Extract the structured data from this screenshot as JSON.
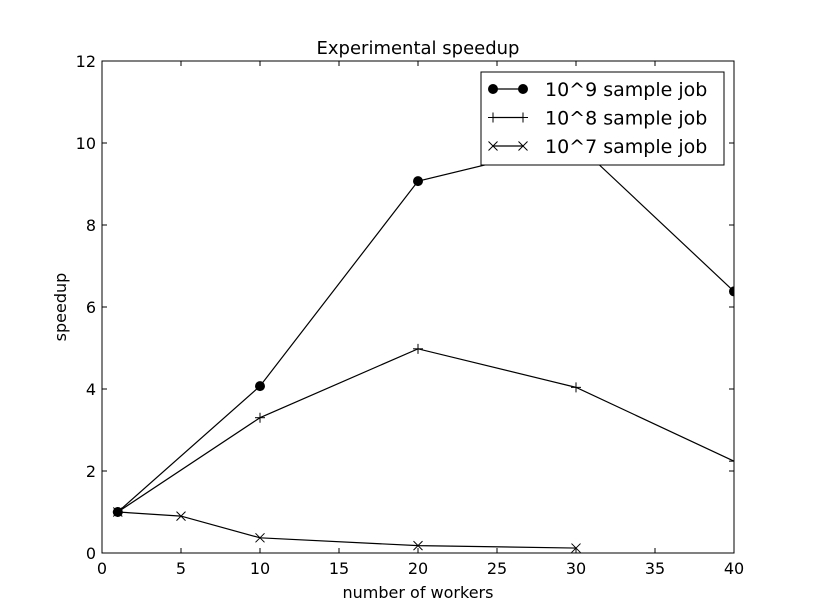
{
  "chart_data": {
    "type": "line",
    "title": "Experimental speedup",
    "xlabel": "number of workers",
    "ylabel": "speedup",
    "xlim": [
      0,
      40
    ],
    "ylim": [
      0,
      12
    ],
    "xticks": [
      0,
      5,
      10,
      15,
      20,
      25,
      30,
      35,
      40
    ],
    "yticks": [
      0,
      2,
      4,
      6,
      8,
      10,
      12
    ],
    "grid": false,
    "legend_position": "top-right",
    "series": [
      {
        "name": "10^9 sample job",
        "marker": "circle",
        "color": "#000000",
        "x": [
          1,
          10,
          20,
          30,
          40
        ],
        "y": [
          1.0,
          4.07,
          9.07,
          10.0,
          6.38
        ]
      },
      {
        "name": "10^8 sample job",
        "marker": "plus",
        "color": "#000000",
        "x": [
          1,
          10,
          20,
          30,
          40
        ],
        "y": [
          1.0,
          3.3,
          4.98,
          4.04,
          2.24
        ]
      },
      {
        "name": "10^7 sample job",
        "marker": "x",
        "color": "#000000",
        "x": [
          1,
          5,
          10,
          20,
          30
        ],
        "y": [
          1.0,
          0.9,
          0.37,
          0.18,
          0.12
        ]
      }
    ]
  }
}
